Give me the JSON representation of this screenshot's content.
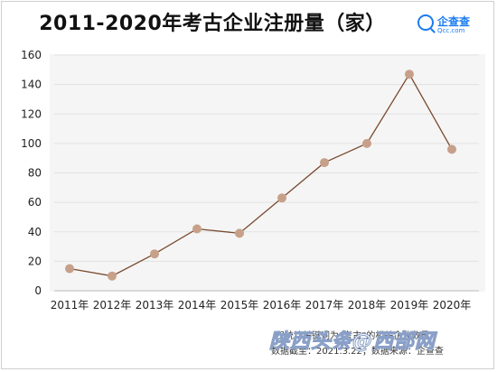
{
  "chart_data": {
    "type": "line",
    "title": "2011-2020年考古企业注册量（家）",
    "categories": [
      "2011年",
      "2012年",
      "2013年",
      "2014年",
      "2015年",
      "2016年",
      "2017年",
      "2018年",
      "2019年",
      "2020年"
    ],
    "values": [
      15,
      10,
      25,
      42,
      39,
      63,
      87,
      100,
      147,
      96
    ],
    "ylim": [
      0,
      160
    ],
    "yticks": [
      0,
      20,
      40,
      60,
      80,
      100,
      120,
      140,
      160
    ],
    "grid": true,
    "line_color": "#7a4a2e",
    "marker_color": "#c7a08a"
  },
  "logo": {
    "name": "企查查",
    "domain": "Qcc.com"
  },
  "notes": {
    "line1": "仅统计关键词为“考古”的相关企业数量",
    "line2": "数据截至：2021.3.22；数据来源：企查查"
  },
  "watermark": "陕西头条@西部网"
}
